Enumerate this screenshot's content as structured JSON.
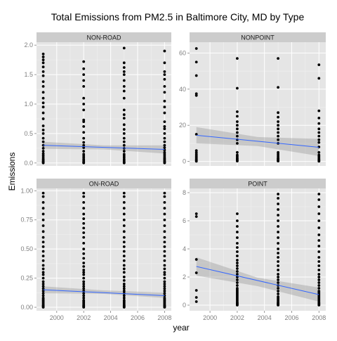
{
  "chart_data": {
    "type": "scatter",
    "title": "Total Emissions from PM2.5 in Baltimore City, MD by Type",
    "xlabel": "year",
    "ylabel": "Emissions",
    "x_ticks": [
      2000,
      2002,
      2004,
      2006,
      2008
    ],
    "xlim": [
      1998.5,
      2008.5
    ],
    "grid": true,
    "smoother": {
      "method": "lm",
      "line_color": "#3366ff",
      "band_color": "#999999"
    },
    "point_color": "#000000",
    "strip_color": "#cccccc",
    "panel_bg": "#e5e5e5",
    "panels": [
      {
        "name": "NON-ROAD",
        "ylim": [
          -0.05,
          2.05
        ],
        "y_ticks": [
          0.0,
          0.5,
          1.0,
          1.5,
          2.0
        ],
        "y_tick_labels": [
          "0.0",
          "0.5",
          "1.0",
          "1.5",
          "2.0"
        ],
        "fit": {
          "y_start": 0.3,
          "y_end": 0.23
        },
        "band": {
          "start_lo": 0.24,
          "start_hi": 0.36,
          "mid_lo": 0.23,
          "mid_hi": 0.3,
          "end_lo": 0.16,
          "end_hi": 0.3
        },
        "points": {
          "1999": [
            0.0,
            0.01,
            0.02,
            0.03,
            0.05,
            0.07,
            0.1,
            0.13,
            0.16,
            0.2,
            0.25,
            0.3,
            0.36,
            0.42,
            0.5,
            0.56,
            0.63,
            0.75,
            0.85,
            0.95,
            1.02,
            1.1,
            1.2,
            1.3,
            1.38,
            1.48,
            1.55,
            1.63,
            1.7,
            1.75,
            1.8,
            1.85
          ],
          "2002": [
            0.0,
            0.01,
            0.02,
            0.04,
            0.06,
            0.09,
            0.12,
            0.15,
            0.2,
            0.26,
            0.3,
            0.35,
            0.42,
            0.52,
            0.62,
            0.7,
            0.73,
            0.9,
            1.0,
            1.1,
            1.3,
            1.4,
            1.5,
            1.6,
            1.72
          ],
          "2005": [
            0.0,
            0.01,
            0.02,
            0.04,
            0.06,
            0.09,
            0.12,
            0.15,
            0.2,
            0.25,
            0.3,
            0.36,
            0.42,
            0.5,
            0.57,
            0.65,
            0.76,
            0.82,
            0.9,
            1.1,
            1.22,
            1.3,
            1.4,
            1.5,
            1.55,
            1.62,
            1.7,
            1.95
          ],
          "2008": [
            0.0,
            0.01,
            0.02,
            0.03,
            0.05,
            0.07,
            0.09,
            0.12,
            0.15,
            0.18,
            0.22,
            0.26,
            0.3,
            0.36,
            0.42,
            0.5,
            0.58,
            0.62,
            0.7,
            0.85,
            0.95,
            1.05,
            1.2,
            1.3,
            1.42,
            1.5,
            1.55,
            1.7,
            1.9
          ]
        }
      },
      {
        "name": "NONPOINT",
        "ylim": [
          -2.5,
          66
        ],
        "y_ticks": [
          0,
          20,
          40,
          60
        ],
        "y_tick_labels": [
          "0",
          "20",
          "40",
          "60"
        ],
        "fit": {
          "y_start": 14.5,
          "y_end": 7.8
        },
        "band": {
          "start_lo": 10.0,
          "start_hi": 19.0,
          "mid_lo": 8.5,
          "mid_hi": 13.5,
          "end_lo": 3.0,
          "end_hi": 12.5
        },
        "points": {
          "1999": [
            0.1,
            0.4,
            0.8,
            1.2,
            1.8,
            2.5,
            3.2,
            4.0,
            5.0,
            6.0,
            15.0,
            36.5,
            37.5,
            47.5,
            55.0,
            62.5
          ],
          "2002": [
            0.2,
            0.5,
            1.0,
            1.5,
            2.0,
            2.8,
            3.5,
            5.0,
            10.0,
            12.0,
            14.0,
            16.0,
            18.0,
            20.0,
            22.0,
            25.0,
            27.5,
            40.5,
            57.0
          ],
          "2005": [
            0.2,
            0.5,
            1.0,
            1.5,
            2.0,
            3.0,
            4.0,
            5.0,
            10.0,
            12.0,
            14.0,
            16.0,
            18.0,
            20.0,
            22.0,
            24.5,
            27.0,
            41.0,
            57.0
          ],
          "2008": [
            0.1,
            0.4,
            0.8,
            1.3,
            2.0,
            2.8,
            3.5,
            5.0,
            8.0,
            10.5,
            12.0,
            14.0,
            16.0,
            18.0,
            21.0,
            24.0,
            28.0,
            46.0,
            53.5
          ]
        }
      },
      {
        "name": "ON-ROAD",
        "ylim": [
          -0.03,
          1.02
        ],
        "y_ticks": [
          0.0,
          0.25,
          0.5,
          0.75,
          1.0
        ],
        "y_tick_labels": [
          "0.00",
          "0.25",
          "0.50",
          "0.75",
          "1.00"
        ],
        "fit": {
          "y_start": 0.15,
          "y_end": 0.1
        },
        "band": {
          "start_lo": 0.12,
          "start_hi": 0.18,
          "mid_lo": 0.115,
          "mid_hi": 0.145,
          "end_lo": 0.08,
          "end_hi": 0.125
        },
        "points": {
          "1999": [
            0.0,
            0.005,
            0.01,
            0.015,
            0.02,
            0.03,
            0.04,
            0.05,
            0.06,
            0.07,
            0.08,
            0.1,
            0.12,
            0.14,
            0.16,
            0.18,
            0.2,
            0.22,
            0.25,
            0.28,
            0.3,
            0.33,
            0.36,
            0.4,
            0.44,
            0.48,
            0.52,
            0.56,
            0.6,
            0.65,
            0.7,
            0.75,
            0.8,
            0.85,
            0.9,
            0.95,
            0.98
          ],
          "2002": [
            0.0,
            0.005,
            0.01,
            0.015,
            0.02,
            0.03,
            0.04,
            0.05,
            0.06,
            0.08,
            0.1,
            0.12,
            0.14,
            0.16,
            0.18,
            0.2,
            0.22,
            0.25,
            0.28,
            0.3,
            0.32,
            0.35,
            0.38,
            0.42,
            0.46,
            0.5,
            0.55,
            0.6,
            0.64,
            0.68,
            0.72,
            0.76,
            0.8,
            0.85,
            0.9,
            0.95,
            0.98
          ],
          "2005": [
            0.0,
            0.005,
            0.01,
            0.015,
            0.02,
            0.03,
            0.04,
            0.05,
            0.06,
            0.08,
            0.1,
            0.12,
            0.14,
            0.16,
            0.18,
            0.2,
            0.23,
            0.26,
            0.3,
            0.33,
            0.36,
            0.4,
            0.44,
            0.48,
            0.52,
            0.56,
            0.6,
            0.65,
            0.7,
            0.75,
            0.8,
            0.85,
            0.9,
            0.95,
            0.98
          ],
          "2008": [
            0.0,
            0.005,
            0.01,
            0.015,
            0.02,
            0.03,
            0.04,
            0.05,
            0.06,
            0.07,
            0.08,
            0.1,
            0.12,
            0.14,
            0.16,
            0.18,
            0.2,
            0.22,
            0.25,
            0.28,
            0.3,
            0.33,
            0.36,
            0.4,
            0.44,
            0.48,
            0.52,
            0.56,
            0.6,
            0.65,
            0.7,
            0.75,
            0.8,
            0.85,
            0.9,
            0.95,
            0.98
          ]
        }
      },
      {
        "name": "POINT",
        "ylim": [
          -0.4,
          8.3
        ],
        "y_ticks": [
          0,
          2,
          4,
          6,
          8
        ],
        "y_tick_labels": [
          "0",
          "2",
          "4",
          "6",
          "8"
        ],
        "fit": {
          "y_start": 2.75,
          "y_end": 0.75
        },
        "band": {
          "start_lo": 2.1,
          "start_hi": 3.4,
          "mid_lo": 1.35,
          "mid_hi": 1.95,
          "end_lo": 0.25,
          "end_hi": 1.25
        },
        "points": {
          "1999": [
            0.25,
            0.55,
            1.05,
            2.3,
            3.25,
            6.3,
            6.5
          ],
          "2002": [
            0.0,
            0.05,
            0.1,
            0.15,
            0.2,
            0.3,
            0.4,
            0.5,
            0.6,
            0.7,
            0.8,
            0.9,
            1.0,
            1.1,
            1.2,
            1.4,
            1.6,
            1.8,
            2.0,
            2.2,
            2.4,
            2.6,
            2.8,
            3.0,
            3.2,
            3.5,
            3.8,
            4.1,
            4.4,
            4.8,
            5.2,
            5.6,
            6.0,
            6.5
          ],
          "2005": [
            0.0,
            0.05,
            0.1,
            0.15,
            0.2,
            0.3,
            0.4,
            0.5,
            0.6,
            0.8,
            1.0,
            1.2,
            1.4,
            1.6,
            1.8,
            2.0,
            2.2,
            2.5,
            2.8,
            3.1,
            3.4,
            3.7,
            4.0,
            4.4,
            4.8,
            5.2,
            5.6,
            6.0,
            6.4,
            6.8,
            7.2,
            7.6,
            7.9
          ],
          "2008": [
            0.0,
            0.05,
            0.1,
            0.15,
            0.2,
            0.3,
            0.4,
            0.5,
            0.6,
            0.7,
            0.8,
            0.9,
            1.0,
            1.2,
            1.4,
            1.6,
            1.8,
            2.0,
            2.2,
            2.5,
            2.8,
            3.1,
            3.4,
            3.8,
            4.2,
            4.6,
            5.0,
            5.5,
            6.0,
            6.5,
            7.0,
            7.5,
            7.9
          ]
        }
      }
    ]
  }
}
